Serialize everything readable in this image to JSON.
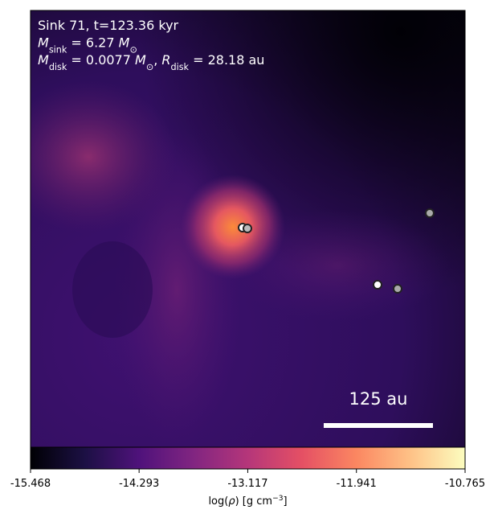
{
  "chart_data": {
    "type": "density_map",
    "colormap": "magma",
    "annotations": [
      [
        {
          "text": "Sink 71, t=123.36 kyr"
        }
      ],
      [
        {
          "text": "M",
          "italic": true
        },
        {
          "text": "sink",
          "sub": true
        },
        {
          "text": " = 6.27 "
        },
        {
          "text": "M",
          "italic": true
        },
        {
          "text": "⊙",
          "sub": true
        }
      ],
      [
        {
          "text": "M",
          "italic": true
        },
        {
          "text": "disk",
          "sub": true
        },
        {
          "text": " = 0.0077 "
        },
        {
          "text": "M",
          "italic": true
        },
        {
          "text": "⊙",
          "sub": true
        },
        {
          "text": ", "
        },
        {
          "text": "R",
          "italic": true
        },
        {
          "text": "disk",
          "sub": true
        },
        {
          "text": " = 28.18 au"
        }
      ]
    ],
    "scale_bar_label": "125 au",
    "colorbar": {
      "clim": [
        -15.468,
        -10.765
      ],
      "ticks": [
        -15.468,
        -14.293,
        -13.117,
        -11.941,
        -10.765
      ],
      "label": [
        {
          "text": "log("
        },
        {
          "text": "ρ",
          "italic": true
        },
        {
          "text": ") [g cm"
        },
        {
          "text": "−3",
          "sup": true
        },
        {
          "text": "]"
        }
      ]
    }
  }
}
